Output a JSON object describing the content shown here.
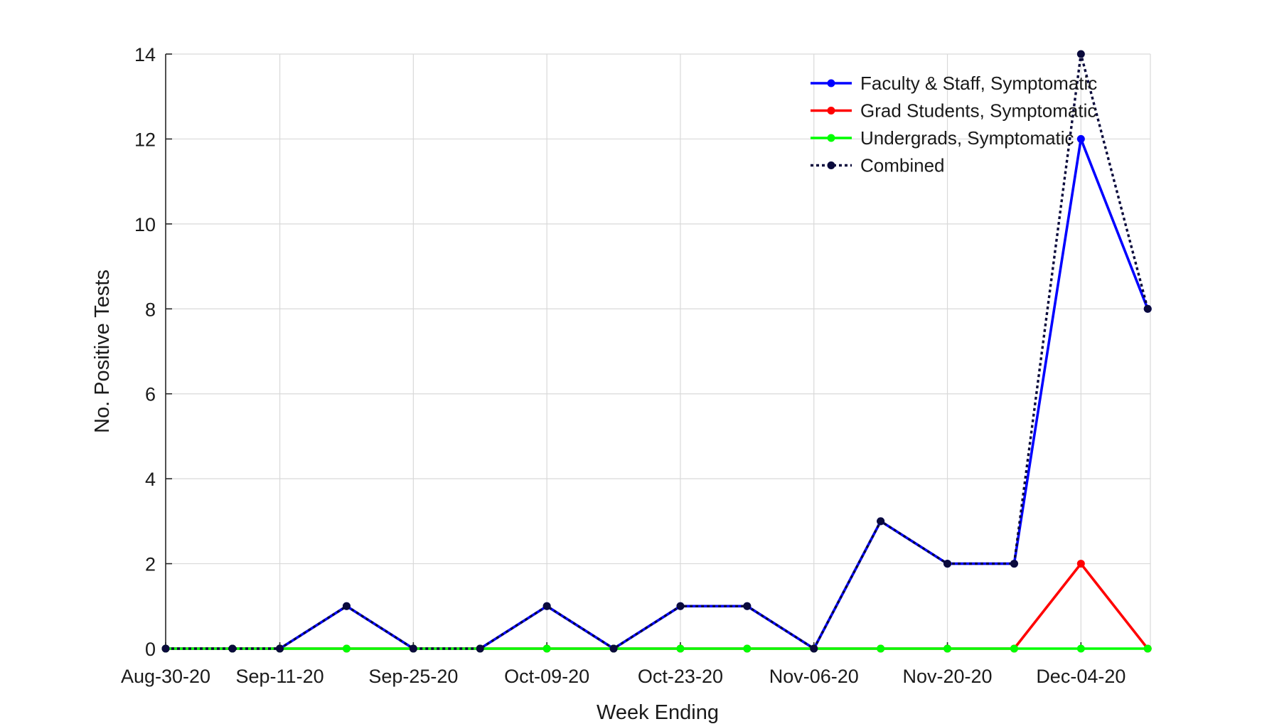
{
  "chart_data": {
    "type": "line",
    "xlabel": "Week Ending",
    "ylabel": "No. Positive Tests",
    "ylim": [
      0,
      14
    ],
    "yticks": [
      0,
      2,
      4,
      6,
      8,
      10,
      12,
      14
    ],
    "x": [
      "Aug-30-20",
      "Sep-06-20",
      "Sep-11-20",
      "Sep-18-20",
      "Sep-25-20",
      "Oct-02-20",
      "Oct-09-20",
      "Oct-16-20",
      "Oct-23-20",
      "Oct-30-20",
      "Nov-06-20",
      "Nov-13-20",
      "Nov-20-20",
      "Nov-27-20",
      "Dec-04-20",
      "Dec-11-20"
    ],
    "xtick_labels": [
      "Aug-30-20",
      "Sep-11-20",
      "Sep-25-20",
      "Oct-09-20",
      "Oct-23-20",
      "Nov-06-20",
      "Nov-20-20",
      "Dec-04-20"
    ],
    "grid": true,
    "legend_position": "top-right",
    "series": [
      {
        "name": "Faculty & Staff, Symptomatic",
        "color": "#0000ff",
        "style": "solid",
        "values": [
          0,
          0,
          0,
          1,
          0,
          0,
          1,
          0,
          1,
          1,
          0,
          3,
          2,
          2,
          12,
          8
        ]
      },
      {
        "name": "Grad Students, Symptomatic",
        "color": "#ff0000",
        "style": "solid",
        "values": [
          0,
          0,
          0,
          0,
          0,
          0,
          0,
          0,
          0,
          0,
          0,
          0,
          0,
          0,
          2,
          0
        ]
      },
      {
        "name": "Undergrads, Symptomatic",
        "color": "#00ff00",
        "style": "solid",
        "values": [
          0,
          0,
          0,
          0,
          0,
          0,
          0,
          0,
          0,
          0,
          0,
          0,
          0,
          0,
          0,
          0
        ]
      },
      {
        "name": "Combined",
        "color": "#0a0a3c",
        "style": "dotted",
        "values": [
          0,
          0,
          0,
          1,
          0,
          0,
          1,
          0,
          1,
          1,
          0,
          3,
          2,
          2,
          14,
          8
        ]
      }
    ]
  }
}
